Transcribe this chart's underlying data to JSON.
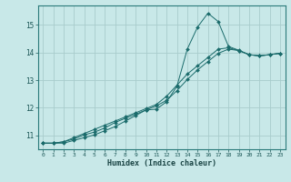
{
  "xlabel": "Humidex (Indice chaleur)",
  "bg_color": "#c8e8e8",
  "grid_color": "#a8cccc",
  "line_color": "#1a6b6b",
  "xlim": [
    -0.5,
    23.5
  ],
  "ylim": [
    10.5,
    15.7
  ],
  "yticks": [
    11,
    12,
    13,
    14,
    15
  ],
  "xticks": [
    0,
    1,
    2,
    3,
    4,
    5,
    6,
    7,
    8,
    9,
    10,
    11,
    12,
    13,
    14,
    15,
    16,
    17,
    18,
    19,
    20,
    21,
    22,
    23
  ],
  "xtick_labels": [
    "0",
    "1",
    "2",
    "3",
    "4",
    "5",
    "6",
    "7",
    "8",
    "9",
    "10",
    "11",
    "12",
    "13",
    "14",
    "15",
    "16",
    "17",
    "18",
    "19",
    "20",
    "21",
    "22",
    "23"
  ],
  "series": [
    [
      10.72,
      10.72,
      10.72,
      10.82,
      10.92,
      11.02,
      11.17,
      11.32,
      11.52,
      11.72,
      11.92,
      11.95,
      12.22,
      12.78,
      14.12,
      14.92,
      15.42,
      15.12,
      14.22,
      14.08,
      13.92,
      13.88,
      13.92,
      13.97
    ],
    [
      10.72,
      10.72,
      10.77,
      10.92,
      11.07,
      11.22,
      11.37,
      11.52,
      11.67,
      11.82,
      11.97,
      12.12,
      12.42,
      12.82,
      13.22,
      13.52,
      13.82,
      14.12,
      14.17,
      14.07,
      13.92,
      13.88,
      13.92,
      13.97
    ],
    [
      10.72,
      10.72,
      10.77,
      10.87,
      11.02,
      11.12,
      11.27,
      11.47,
      11.62,
      11.77,
      11.92,
      12.07,
      12.27,
      12.62,
      13.02,
      13.37,
      13.67,
      13.97,
      14.12,
      14.07,
      13.92,
      13.88,
      13.92,
      13.97
    ]
  ]
}
